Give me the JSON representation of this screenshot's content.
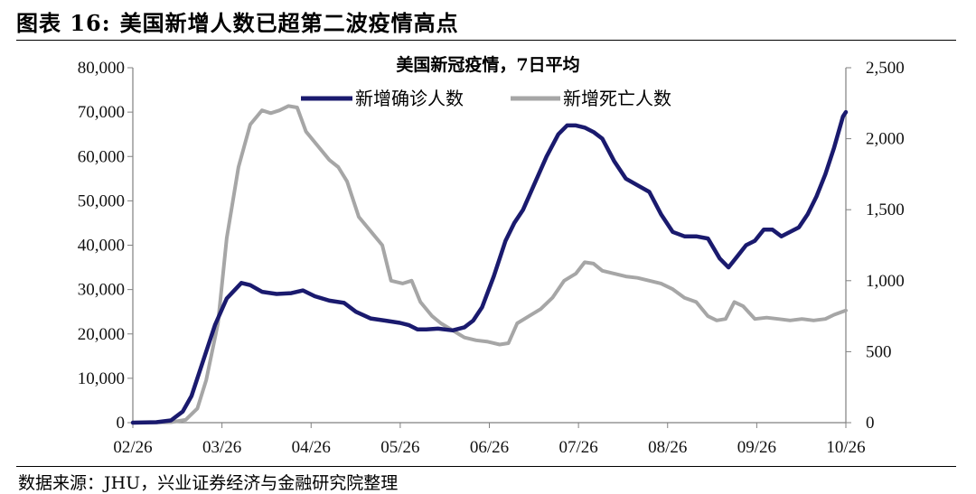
{
  "figure": {
    "label": "图表 16:",
    "heading": "美国新增人数已超第二波疫情高点",
    "source": "数据来源：JHU，兴业证券经济与金融研究院整理"
  },
  "chart_data": {
    "type": "line",
    "title": "美国新冠疫情，7日平均",
    "x_ticks": [
      "02/26",
      "03/26",
      "04/26",
      "05/26",
      "06/26",
      "07/26",
      "08/26",
      "09/26",
      "10/26"
    ],
    "x_range": [
      "2020-02-26",
      "2020-10-26"
    ],
    "y_left": {
      "range": [
        0,
        80000
      ],
      "ticks": [
        "0",
        "10,000",
        "20,000",
        "30,000",
        "40,000",
        "50,000",
        "60,000",
        "70,000",
        "80,000"
      ]
    },
    "y_right": {
      "range": [
        0,
        2500
      ],
      "ticks": [
        "0",
        "500",
        "1,000",
        "1,500",
        "2,000",
        "2,500"
      ]
    },
    "legend": "top-center",
    "grid": false,
    "series": [
      {
        "name": "新增确诊人数",
        "axis": "left",
        "color": "#1a1a6e",
        "points": [
          [
            "2020-02-26",
            0
          ],
          [
            "2020-03-05",
            100
          ],
          [
            "2020-03-10",
            500
          ],
          [
            "2020-03-14",
            2500
          ],
          [
            "2020-03-17",
            6000
          ],
          [
            "2020-03-21",
            14000
          ],
          [
            "2020-03-25",
            22000
          ],
          [
            "2020-03-29",
            28000
          ],
          [
            "2020-04-03",
            31500
          ],
          [
            "2020-04-06",
            31000
          ],
          [
            "2020-04-10",
            29500
          ],
          [
            "2020-04-15",
            29000
          ],
          [
            "2020-04-20",
            29200
          ],
          [
            "2020-04-24",
            29800
          ],
          [
            "2020-04-28",
            28500
          ],
          [
            "2020-05-03",
            27500
          ],
          [
            "2020-05-08",
            27000
          ],
          [
            "2020-05-12",
            25000
          ],
          [
            "2020-05-17",
            23500
          ],
          [
            "2020-05-22",
            23000
          ],
          [
            "2020-05-27",
            22500
          ],
          [
            "2020-05-30",
            22000
          ],
          [
            "2020-06-02",
            21000
          ],
          [
            "2020-06-05",
            21000
          ],
          [
            "2020-06-09",
            21200
          ],
          [
            "2020-06-14",
            20800
          ],
          [
            "2020-06-18",
            21500
          ],
          [
            "2020-06-21",
            23000
          ],
          [
            "2020-06-24",
            26000
          ],
          [
            "2020-06-28",
            33000
          ],
          [
            "2020-07-02",
            41000
          ],
          [
            "2020-07-05",
            45000
          ],
          [
            "2020-07-08",
            48000
          ],
          [
            "2020-07-12",
            54000
          ],
          [
            "2020-07-16",
            60000
          ],
          [
            "2020-07-20",
            65000
          ],
          [
            "2020-07-23",
            67000
          ],
          [
            "2020-07-26",
            67000
          ],
          [
            "2020-07-29",
            66500
          ],
          [
            "2020-08-01",
            65500
          ],
          [
            "2020-08-04",
            64000
          ],
          [
            "2020-08-08",
            59000
          ],
          [
            "2020-08-12",
            55000
          ],
          [
            "2020-08-16",
            53500
          ],
          [
            "2020-08-20",
            52000
          ],
          [
            "2020-08-24",
            47000
          ],
          [
            "2020-08-28",
            43000
          ],
          [
            "2020-09-01",
            42000
          ],
          [
            "2020-09-05",
            42000
          ],
          [
            "2020-09-09",
            41500
          ],
          [
            "2020-09-13",
            37000
          ],
          [
            "2020-09-16",
            35000
          ],
          [
            "2020-09-19",
            37500
          ],
          [
            "2020-09-22",
            40000
          ],
          [
            "2020-09-25",
            41000
          ],
          [
            "2020-09-28",
            43500
          ],
          [
            "2020-10-01",
            43500
          ],
          [
            "2020-10-04",
            42000
          ],
          [
            "2020-10-07",
            43000
          ],
          [
            "2020-10-10",
            44000
          ],
          [
            "2020-10-13",
            47000
          ],
          [
            "2020-10-16",
            51000
          ],
          [
            "2020-10-19",
            56000
          ],
          [
            "2020-10-22",
            62000
          ],
          [
            "2020-10-25",
            69000
          ],
          [
            "2020-10-26",
            70000
          ]
        ]
      },
      {
        "name": "新增死亡人数",
        "axis": "right",
        "color": "#a6a6a6",
        "points": [
          [
            "2020-02-26",
            0
          ],
          [
            "2020-03-10",
            3
          ],
          [
            "2020-03-15",
            20
          ],
          [
            "2020-03-19",
            100
          ],
          [
            "2020-03-22",
            300
          ],
          [
            "2020-03-26",
            700
          ],
          [
            "2020-03-29",
            1300
          ],
          [
            "2020-04-02",
            1800
          ],
          [
            "2020-04-06",
            2100
          ],
          [
            "2020-04-10",
            2200
          ],
          [
            "2020-04-13",
            2180
          ],
          [
            "2020-04-16",
            2200
          ],
          [
            "2020-04-19",
            2230
          ],
          [
            "2020-04-22",
            2220
          ],
          [
            "2020-04-25",
            2050
          ],
          [
            "2020-04-29",
            1950
          ],
          [
            "2020-05-03",
            1850
          ],
          [
            "2020-05-06",
            1800
          ],
          [
            "2020-05-09",
            1700
          ],
          [
            "2020-05-13",
            1450
          ],
          [
            "2020-05-17",
            1350
          ],
          [
            "2020-05-21",
            1250
          ],
          [
            "2020-05-24",
            1000
          ],
          [
            "2020-05-28",
            980
          ],
          [
            "2020-05-31",
            1000
          ],
          [
            "2020-06-03",
            850
          ],
          [
            "2020-06-07",
            750
          ],
          [
            "2020-06-10",
            700
          ],
          [
            "2020-06-14",
            650
          ],
          [
            "2020-06-18",
            600
          ],
          [
            "2020-06-22",
            580
          ],
          [
            "2020-06-26",
            570
          ],
          [
            "2020-06-30",
            550
          ],
          [
            "2020-07-03",
            560
          ],
          [
            "2020-07-06",
            700
          ],
          [
            "2020-07-10",
            750
          ],
          [
            "2020-07-14",
            800
          ],
          [
            "2020-07-18",
            880
          ],
          [
            "2020-07-22",
            1000
          ],
          [
            "2020-07-26",
            1050
          ],
          [
            "2020-07-29",
            1130
          ],
          [
            "2020-08-01",
            1120
          ],
          [
            "2020-08-04",
            1070
          ],
          [
            "2020-08-08",
            1050
          ],
          [
            "2020-08-12",
            1030
          ],
          [
            "2020-08-16",
            1020
          ],
          [
            "2020-08-20",
            1000
          ],
          [
            "2020-08-24",
            980
          ],
          [
            "2020-08-28",
            940
          ],
          [
            "2020-09-01",
            880
          ],
          [
            "2020-09-05",
            850
          ],
          [
            "2020-09-09",
            750
          ],
          [
            "2020-09-12",
            720
          ],
          [
            "2020-09-15",
            730
          ],
          [
            "2020-09-18",
            850
          ],
          [
            "2020-09-21",
            820
          ],
          [
            "2020-09-25",
            730
          ],
          [
            "2020-09-29",
            740
          ],
          [
            "2020-10-03",
            730
          ],
          [
            "2020-10-07",
            720
          ],
          [
            "2020-10-11",
            730
          ],
          [
            "2020-10-15",
            720
          ],
          [
            "2020-10-19",
            730
          ],
          [
            "2020-10-22",
            760
          ],
          [
            "2020-10-26",
            790
          ]
        ]
      }
    ]
  }
}
